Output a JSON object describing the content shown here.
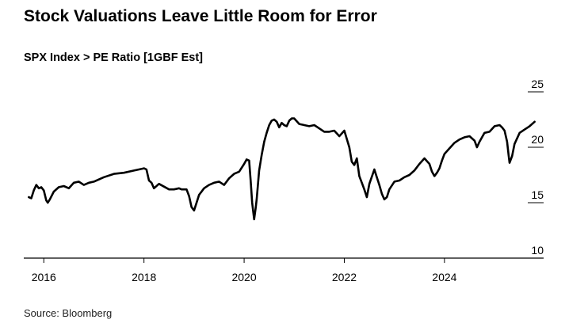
{
  "header": {
    "title": "Stock Valuations Leave Little Room for Error",
    "subtitle": "SPX Index > PE Ratio [1GBF Est]"
  },
  "footer": {
    "source": "Source: Bloomberg"
  },
  "chart_data": {
    "type": "line",
    "title": "Stock Valuations Leave Little Room for Error",
    "subtitle": "SPX Index > PE Ratio [1GBF Est]",
    "xlabel": "",
    "ylabel": "",
    "xlim": [
      2015.6,
      2025.98
    ],
    "ylim": [
      10,
      25
    ],
    "x_ticks": [
      2016,
      2018,
      2020,
      2022,
      2024
    ],
    "x_tick_labels": [
      "2016",
      "2018",
      "2020",
      "2022",
      "2024"
    ],
    "y_ticks": [
      10,
      15,
      20,
      25
    ],
    "y_tick_labels": [
      "10",
      "15",
      "20",
      "25"
    ],
    "y_axis_side": "right",
    "grid": false,
    "line_color": "#000000",
    "series": [
      {
        "x": [
          2015.7,
          2015.75,
          2015.8,
          2015.85,
          2015.9,
          2015.95,
          2016.0,
          2016.05,
          2016.08,
          2016.12,
          2016.2,
          2016.3,
          2016.4,
          2016.5,
          2016.6,
          2016.7,
          2016.8,
          2016.85,
          2016.9,
          2017.0,
          2017.2,
          2017.4,
          2017.6,
          2017.8,
          2017.9,
          2018.0,
          2018.05,
          2018.1,
          2018.15,
          2018.2,
          2018.3,
          2018.5,
          2018.6,
          2018.7,
          2018.75,
          2018.85,
          2018.9,
          2018.95,
          2019.0,
          2019.1,
          2019.2,
          2019.3,
          2019.4,
          2019.5,
          2019.6,
          2019.7,
          2019.8,
          2019.9,
          2020.0,
          2020.05,
          2020.1,
          2020.13,
          2020.16,
          2020.2,
          2020.23,
          2020.25,
          2020.3,
          2020.35,
          2020.4,
          2020.45,
          2020.5,
          2020.55,
          2020.6,
          2020.65,
          2020.7,
          2020.75,
          2020.8,
          2020.85,
          2020.9,
          2020.95,
          2021.0,
          2021.1,
          2021.2,
          2021.3,
          2021.4,
          2021.5,
          2021.6,
          2021.7,
          2021.8,
          2021.9,
          2022.0,
          2022.1,
          2022.15,
          2022.2,
          2022.25,
          2022.3,
          2022.35,
          2022.4,
          2022.45,
          2022.5,
          2022.6,
          2022.65,
          2022.7,
          2022.75,
          2022.8,
          2022.85,
          2022.9,
          2023.0,
          2023.1,
          2023.2,
          2023.3,
          2023.4,
          2023.5,
          2023.6,
          2023.7,
          2023.75,
          2023.8,
          2023.85,
          2023.9,
          2023.95,
          2024.0,
          2024.1,
          2024.2,
          2024.3,
          2024.4,
          2024.5,
          2024.6,
          2024.65,
          2024.7,
          2024.8,
          2024.9,
          2025.0,
          2025.1,
          2025.15,
          2025.2,
          2025.25,
          2025.28,
          2025.3,
          2025.35,
          2025.4,
          2025.5,
          2025.6,
          2025.7,
          2025.8
        ],
        "values": [
          15.5,
          15.4,
          16.1,
          16.6,
          16.3,
          16.4,
          16.1,
          15.2,
          15.0,
          15.3,
          16.0,
          16.4,
          16.5,
          16.3,
          16.8,
          16.9,
          16.6,
          16.7,
          16.8,
          16.9,
          17.3,
          17.6,
          17.7,
          17.9,
          18.0,
          18.1,
          18.0,
          17.0,
          16.8,
          16.3,
          16.7,
          16.2,
          16.2,
          16.3,
          16.2,
          16.2,
          15.6,
          14.6,
          14.3,
          15.7,
          16.3,
          16.6,
          16.8,
          16.9,
          16.6,
          17.2,
          17.6,
          17.8,
          18.5,
          18.9,
          18.8,
          17.0,
          15.0,
          13.5,
          14.5,
          15.3,
          17.9,
          19.3,
          20.5,
          21.3,
          22.0,
          22.4,
          22.5,
          22.3,
          21.8,
          22.2,
          22.0,
          21.9,
          22.4,
          22.6,
          22.6,
          22.1,
          22.0,
          21.9,
          22.0,
          21.7,
          21.4,
          21.4,
          21.5,
          21.0,
          21.5,
          20.0,
          18.7,
          18.4,
          19.0,
          17.4,
          16.8,
          16.2,
          15.5,
          16.7,
          18.0,
          17.3,
          16.6,
          15.8,
          15.3,
          15.5,
          16.2,
          16.9,
          17.0,
          17.3,
          17.5,
          17.9,
          18.5,
          19.0,
          18.5,
          17.8,
          17.4,
          17.7,
          18.1,
          18.8,
          19.4,
          19.9,
          20.4,
          20.7,
          20.9,
          21.0,
          20.6,
          20.0,
          20.5,
          21.3,
          21.4,
          21.9,
          22.0,
          21.8,
          21.5,
          20.5,
          19.3,
          18.6,
          19.2,
          20.3,
          21.3,
          21.6,
          21.9,
          22.3
        ]
      }
    ]
  }
}
